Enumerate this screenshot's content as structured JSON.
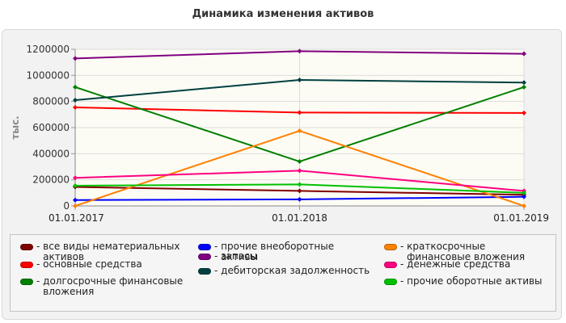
{
  "chart_data": {
    "type": "line",
    "title": "Динамика изменения активов",
    "ylabel": "тыс.",
    "xlabel": "",
    "categories": [
      "01.01.2017",
      "01.01.2018",
      "01.01.2019"
    ],
    "ylim": [
      0,
      1200000
    ],
    "yticks": [
      "0",
      "200000",
      "400000",
      "600000",
      "800000",
      "1000000",
      "1200000"
    ],
    "grid": true,
    "legend_position": "bottom",
    "series": [
      {
        "name": "все виды нематериальных активов",
        "color": "#800000",
        "values": [
          145000,
          115000,
          85000
        ]
      },
      {
        "name": "основные средства",
        "color": "#ff0000",
        "values": [
          755000,
          715000,
          712000
        ]
      },
      {
        "name": "долгосрочные финансовые вложения",
        "color": "#008000",
        "values": [
          910000,
          340000,
          910000
        ]
      },
      {
        "name": "прочие внеоборотные активы",
        "color": "#0000ff",
        "values": [
          45000,
          50000,
          70000
        ]
      },
      {
        "name": "запасы",
        "color": "#800080",
        "values": [
          1130000,
          1185000,
          1165000
        ]
      },
      {
        "name": "дебиторская задолженность",
        "color": "#004040",
        "values": [
          810000,
          965000,
          945000
        ]
      },
      {
        "name": "краткосрочные финансовые вложения",
        "color": "#ff8000",
        "values": [
          0,
          575000,
          0
        ]
      },
      {
        "name": "денежные средства",
        "color": "#ff0080",
        "values": [
          215000,
          270000,
          115000
        ]
      },
      {
        "name": "прочие оборотные активы",
        "color": "#00c000",
        "values": [
          155000,
          165000,
          100000
        ]
      }
    ]
  }
}
